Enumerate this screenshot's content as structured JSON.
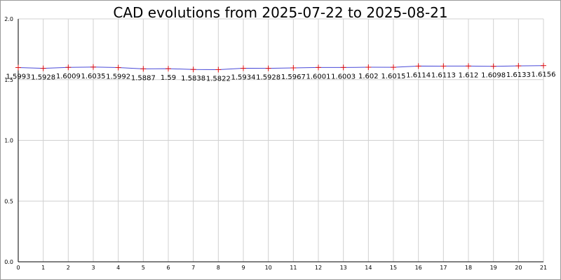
{
  "chart_data": {
    "type": "line",
    "title": "CAD evolutions from 2025-07-22 to 2025-08-21",
    "xlabel": "",
    "ylabel": "",
    "x": [
      0,
      1,
      2,
      3,
      4,
      5,
      6,
      7,
      8,
      9,
      10,
      11,
      12,
      13,
      14,
      15,
      16,
      17,
      18,
      19,
      20,
      21
    ],
    "xlim": [
      0,
      21
    ],
    "ylim": [
      0.0,
      2.0
    ],
    "yticks": [
      "0.0",
      "0.5",
      "1.0",
      "1.5",
      "2.0"
    ],
    "xticks": [
      "0",
      "1",
      "2",
      "3",
      "4",
      "5",
      "6",
      "7",
      "8",
      "9",
      "10",
      "11",
      "12",
      "13",
      "14",
      "15",
      "16",
      "17",
      "18",
      "19",
      "20",
      "21"
    ],
    "grid": true,
    "series": [
      {
        "values": [
          1.5993,
          1.5928,
          1.6009,
          1.6035,
          1.5992,
          1.5887,
          1.59,
          1.5838,
          1.5822,
          1.5934,
          1.5928,
          1.5967,
          1.6001,
          1.6003,
          1.602,
          1.6015,
          1.6114,
          1.6113,
          1.612,
          1.6098,
          1.6133,
          1.6156
        ],
        "labels": [
          "1.5993",
          "1.5928",
          "1.6009",
          "1.6035",
          "1.5992",
          "1.5887",
          "1.59",
          "1.5838",
          "1.5822",
          "1.5934",
          "1.5928",
          "1.5967",
          "1.6001",
          "1.6003",
          "1.602",
          "1.6015",
          "1.6114",
          "1.6113",
          "1.612",
          "1.6098",
          "1.6133",
          "1.6156"
        ],
        "line_color": "#4a4ad8",
        "marker_color": "#e01010",
        "marker": "plus"
      }
    ],
    "colors": {
      "grid": "#d0d0d0",
      "axis": "#000000"
    }
  }
}
